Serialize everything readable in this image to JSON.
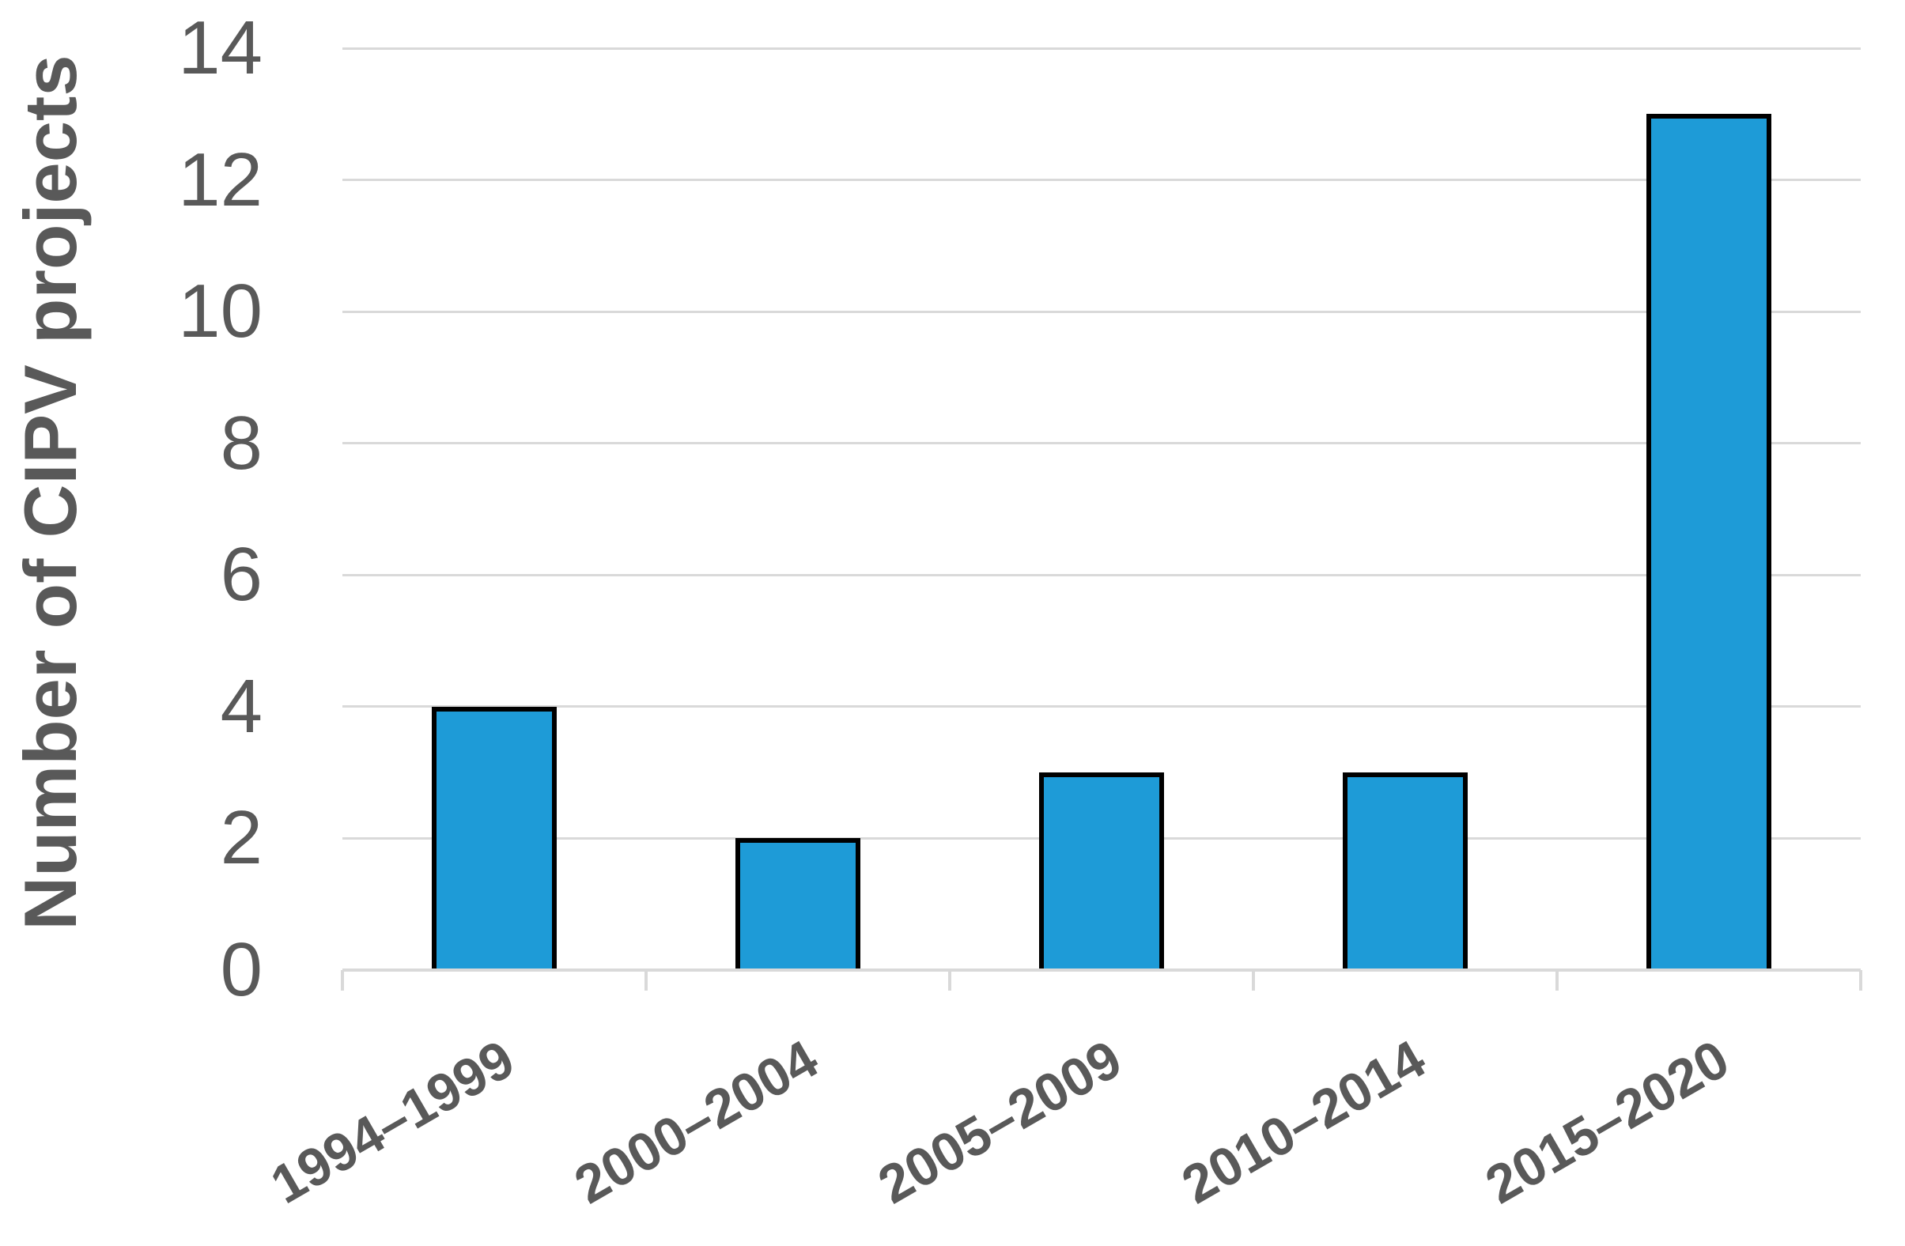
{
  "chart_data": {
    "type": "bar",
    "title": "",
    "ylabel": "Number of CIPV projects",
    "xlabel": "",
    "categories": [
      "1994–1999",
      "2000–2004",
      "2005–2009",
      "2010–2014",
      "2015–2020"
    ],
    "values": [
      4,
      2,
      3,
      3,
      13
    ],
    "ylim": [
      0,
      14
    ],
    "yticks": [
      0,
      2,
      4,
      6,
      8,
      10,
      12,
      14
    ],
    "grid": "horizontal",
    "legend_position": "none",
    "x_label_rotation_deg": -30,
    "colors": {
      "bar_fill": "#1E9BD7",
      "bar_border": "#000000",
      "gridline": "#D9D9D9",
      "axis_line": "#D9D9D9",
      "tick_label": "#595959",
      "axis_title": "#595959",
      "background": "#FFFFFF"
    }
  }
}
